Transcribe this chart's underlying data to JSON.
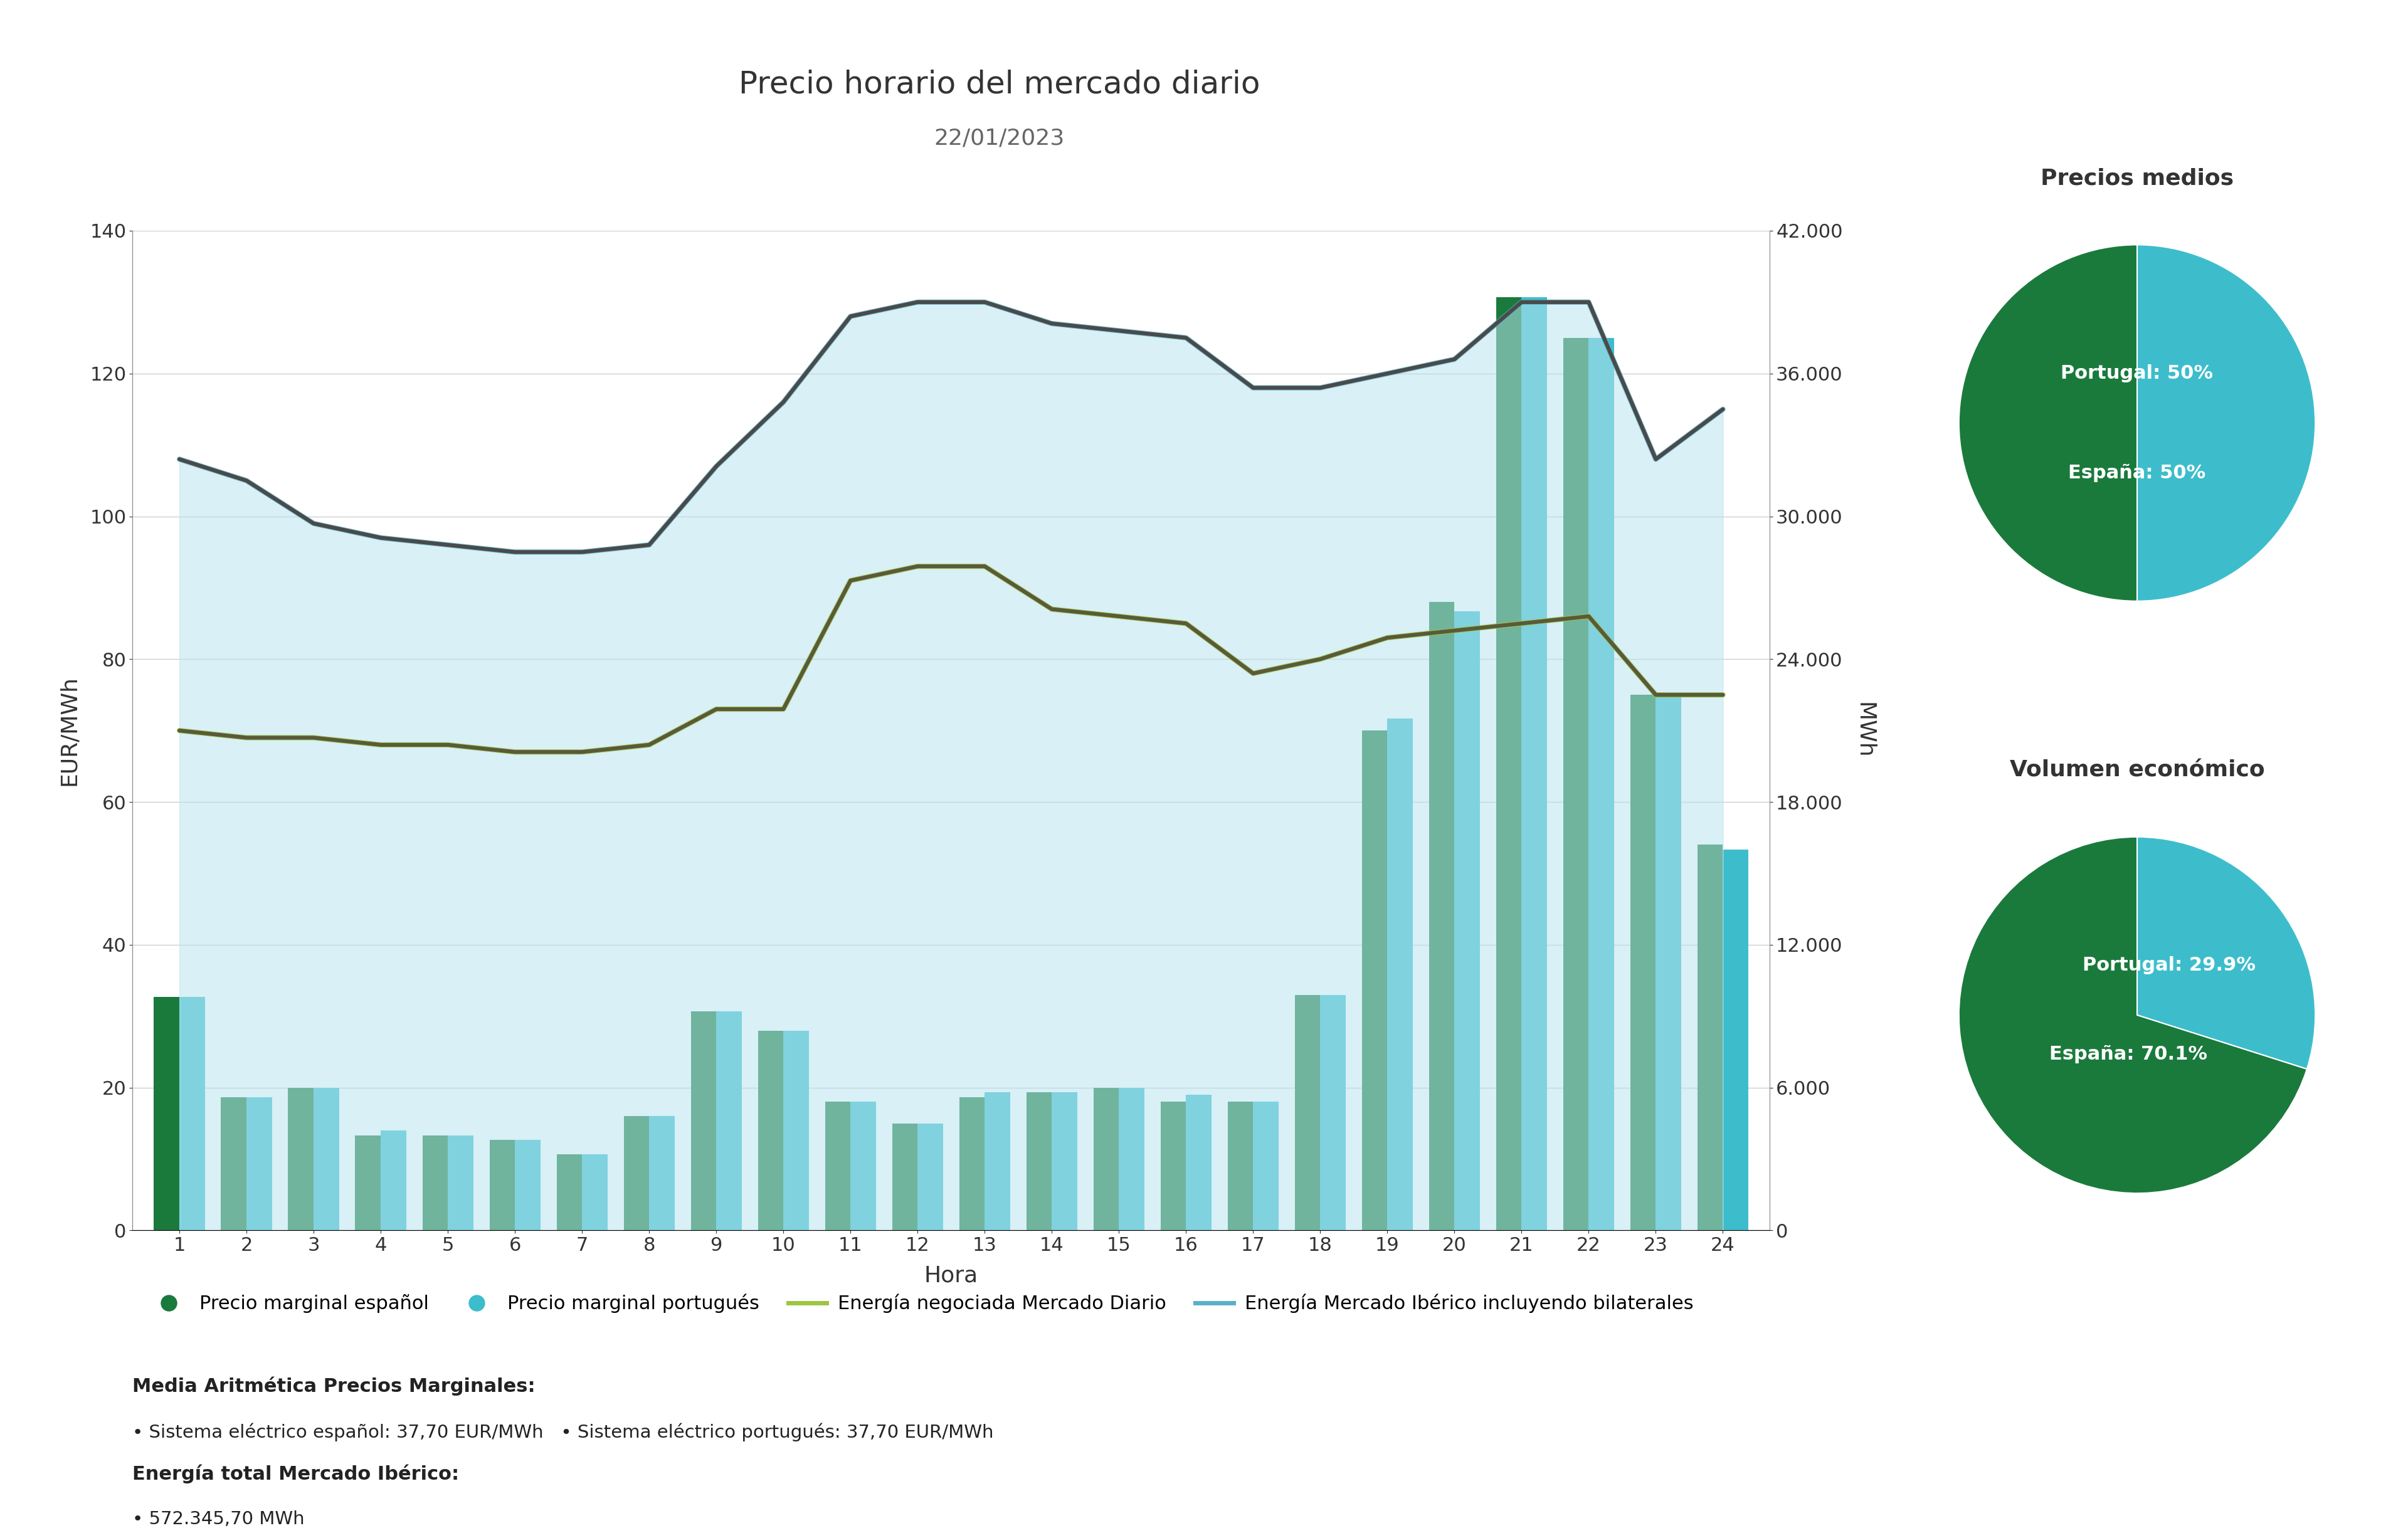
{
  "title": "Precio horario del mercado diario",
  "subtitle": "22/01/2023",
  "hours": [
    1,
    2,
    3,
    4,
    5,
    6,
    7,
    8,
    9,
    10,
    11,
    12,
    13,
    14,
    15,
    16,
    17,
    18,
    19,
    20,
    21,
    22,
    23,
    24
  ],
  "energia_mercado_diario": [
    70,
    69,
    69,
    68,
    68,
    67,
    67,
    68,
    73,
    73,
    91,
    93,
    93,
    87,
    86,
    85,
    78,
    80,
    83,
    84,
    85,
    86,
    75,
    75
  ],
  "energia_iberico": [
    108,
    105,
    99,
    97,
    96,
    95,
    95,
    96,
    107,
    116,
    128,
    130,
    130,
    127,
    126,
    125,
    118,
    118,
    120,
    122,
    130,
    130,
    108,
    115
  ],
  "bar_espana_mwh": [
    9800,
    5600,
    6000,
    4000,
    4000,
    3800,
    3200,
    4800,
    9200,
    8400,
    5400,
    4500,
    5600,
    5800,
    6000,
    5400,
    5400,
    9900,
    21000,
    26400,
    39200,
    37500,
    22500,
    16200
  ],
  "bar_portugal_mwh": [
    9800,
    5600,
    6000,
    4200,
    4000,
    3800,
    3200,
    4800,
    9200,
    8400,
    5400,
    4500,
    5800,
    5800,
    6000,
    5700,
    5400,
    9900,
    21500,
    26000,
    39200,
    37500,
    22500,
    16000
  ],
  "color_espana_bar": "#1a7a3c",
  "color_portugal_bar": "#3dbdcc",
  "color_line_mercado": "#9dc63f",
  "color_line_mercado_border": "#6a8a2a",
  "color_line_iberico_fill": "#b8e4ef",
  "color_line_iberico_border": "#5ab0c8",
  "color_iberico_dark": "#4a4a4a",
  "color_mercado_dark": "#5a5a3a",
  "ylabel_left": "EUR/MWh",
  "ylabel_right": "MWh",
  "xlabel": "Hora",
  "ylim_left": [
    0,
    140
  ],
  "ylim_right": [
    0,
    42000
  ],
  "yticks_left": [
    0,
    20,
    40,
    60,
    80,
    100,
    120,
    140
  ],
  "yticks_right": [
    0,
    6000,
    12000,
    18000,
    24000,
    30000,
    36000,
    42000
  ],
  "yticks_right_labels": [
    "0",
    "6.000",
    "12.000",
    "18.000",
    "24.000",
    "30.000",
    "36.000",
    "42.000"
  ],
  "legend_labels": [
    "Precio marginal español",
    "Precio marginal portugués",
    "Energía negociada Mercado Diario",
    "Energía Mercado Ibérico incluyendo bilaterales"
  ],
  "pie1_values": [
    50,
    50
  ],
  "pie1_labels": [
    "Portugal: 50%",
    "España: 50%"
  ],
  "pie1_colors": [
    "#3dbdcc",
    "#1a7a3c"
  ],
  "pie2_values": [
    29.9,
    70.1
  ],
  "pie2_labels": [
    "Portugal: 29.9%",
    "España: 70.1%"
  ],
  "pie2_colors": [
    "#3dbdcc",
    "#1a7a3c"
  ],
  "pie1_title": "Precios medios",
  "pie2_title": "Volumen económico",
  "annotation_bold1": "Media Aritmética Precios Marginales:",
  "annotation_text1": "• Sistema eléctrico español: 37,70 EUR/MWh   • Sistema eléctrico portugués: 37,70 EUR/MWh",
  "annotation_bold2": "Energía total Mercado Ibérico:",
  "annotation_text2": "• 572.345,70 MWh",
  "background_color": "#ffffff",
  "grid_color": "#d0d0d0",
  "title_color": "#333333",
  "axis_color": "#333333"
}
